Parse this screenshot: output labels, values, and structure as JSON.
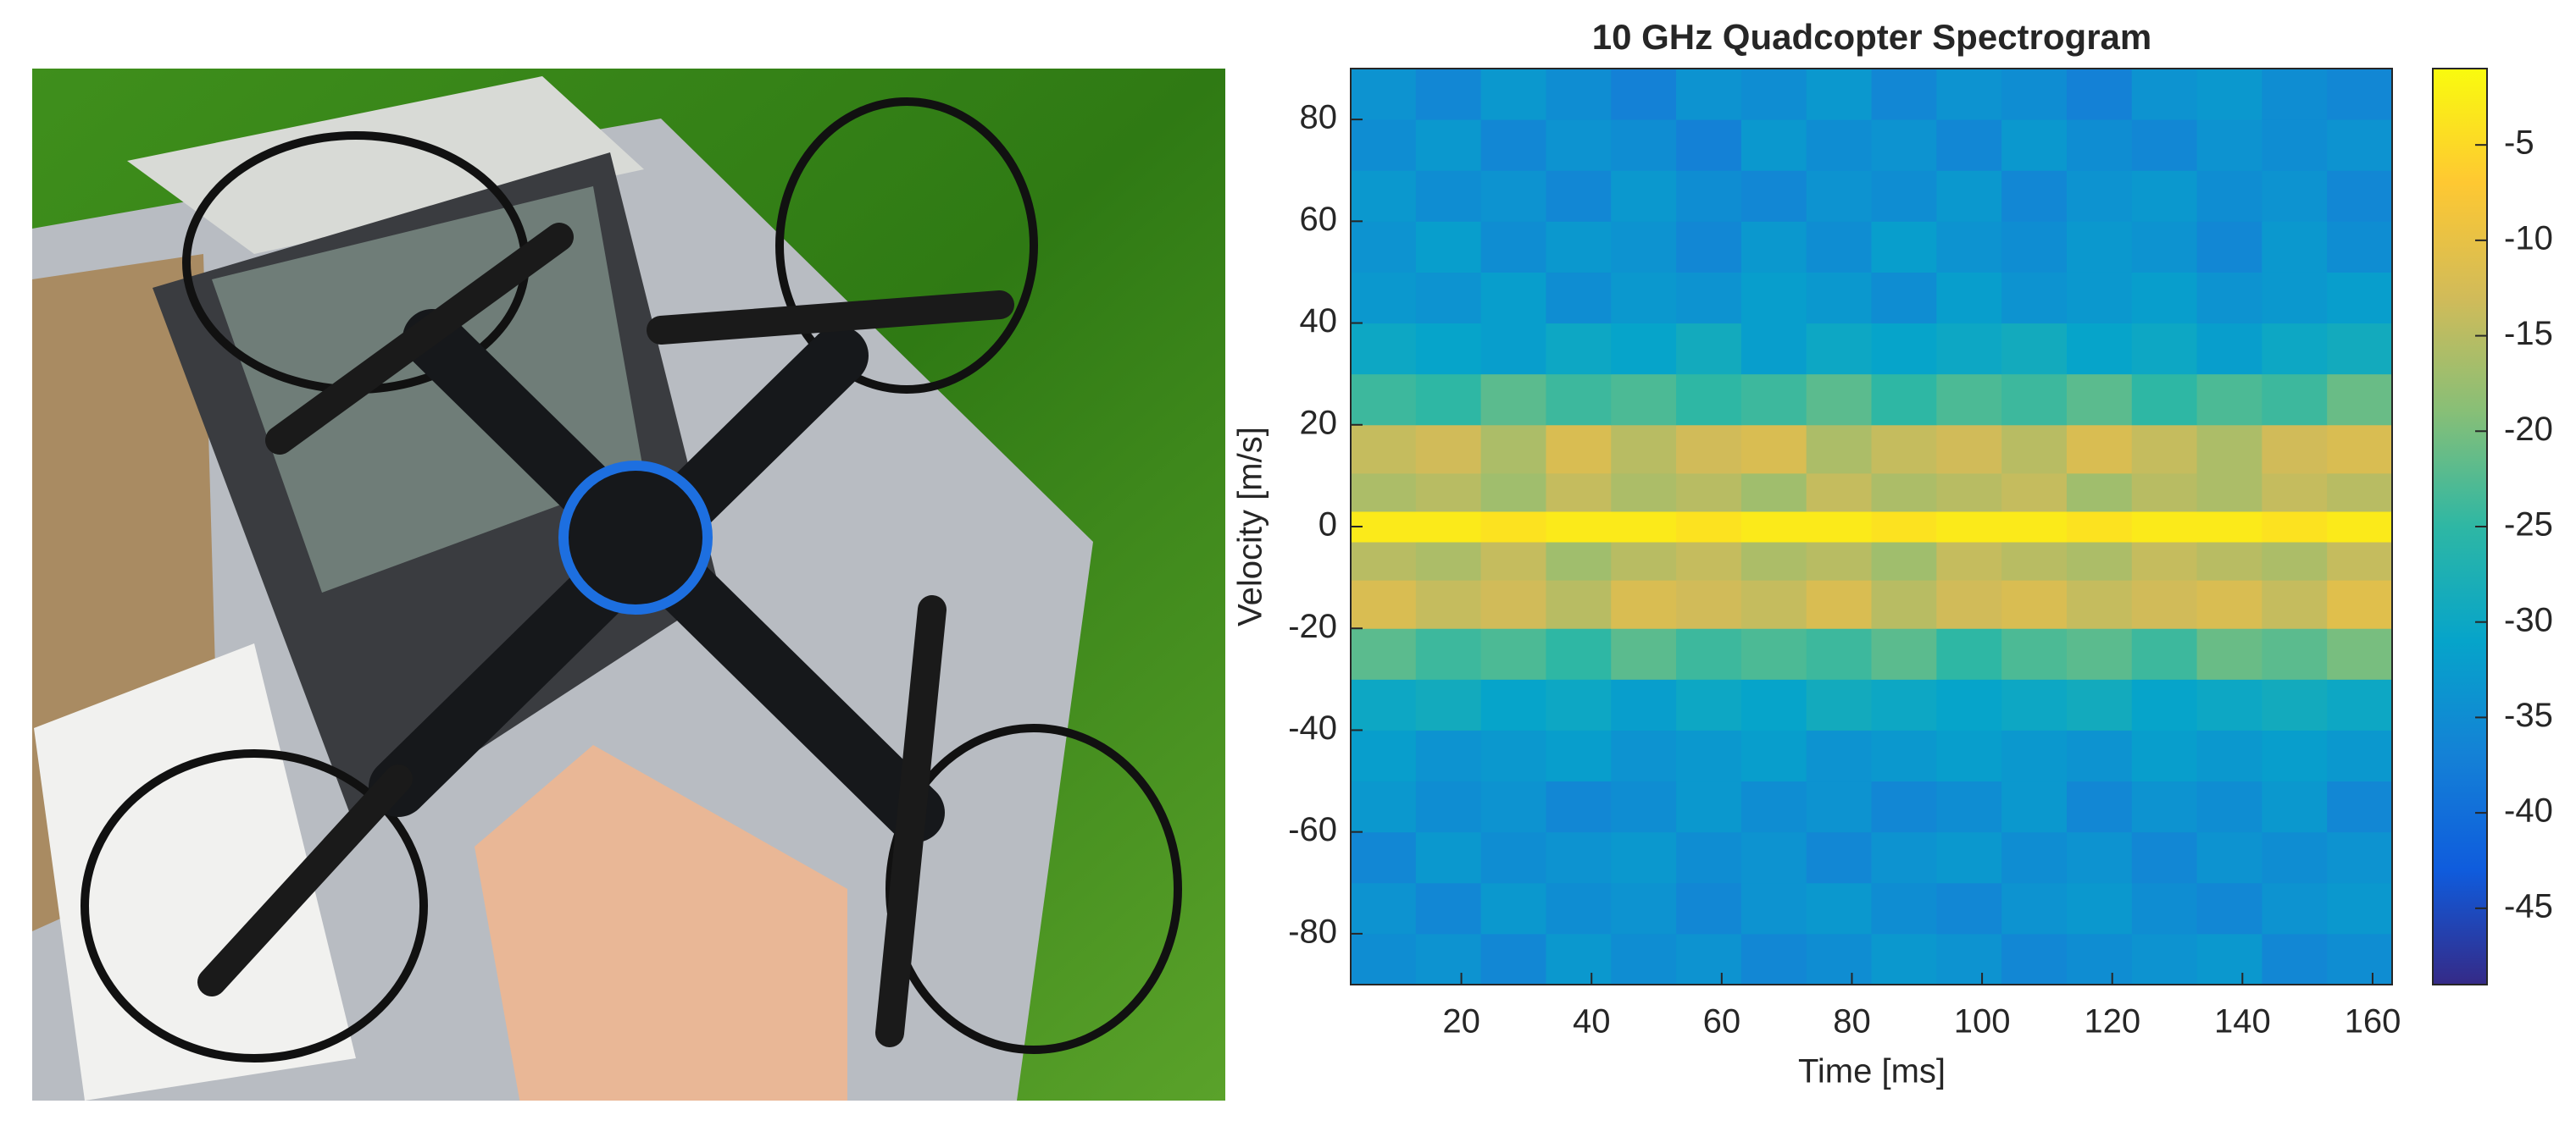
{
  "chart_data": {
    "type": "heatmap",
    "title": "10 GHz Quadcopter Spectrogram",
    "x_label": "Time [ms]",
    "y_label": "Velocity [m/s]",
    "x": [
      8,
      18,
      28,
      38,
      48,
      58,
      68,
      78,
      88,
      98,
      108,
      118,
      128,
      138,
      148,
      158
    ],
    "y": [
      -85,
      -75,
      -65,
      -55,
      -45,
      -35,
      -25,
      -15,
      -6,
      0,
      6,
      15,
      25,
      35,
      45,
      55,
      65,
      75,
      85
    ],
    "z": [
      [
        -35,
        -34,
        -36,
        -33,
        -35,
        -34,
        -36,
        -35,
        -33,
        -34,
        -36,
        -35,
        -34,
        -33,
        -36,
        -35
      ],
      [
        -34,
        -36,
        -33,
        -35,
        -34,
        -36,
        -34,
        -33,
        -35,
        -36,
        -34,
        -33,
        -35,
        -36,
        -34,
        -33
      ],
      [
        -36,
        -33,
        -35,
        -34,
        -33,
        -35,
        -34,
        -36,
        -34,
        -33,
        -35,
        -34,
        -36,
        -34,
        -35,
        -34
      ],
      [
        -33,
        -35,
        -34,
        -36,
        -35,
        -33,
        -35,
        -34,
        -36,
        -35,
        -33,
        -36,
        -34,
        -35,
        -33,
        -36
      ],
      [
        -32,
        -34,
        -33,
        -32,
        -34,
        -33,
        -32,
        -34,
        -33,
        -32,
        -33,
        -34,
        -32,
        -33,
        -32,
        -33
      ],
      [
        -30,
        -29,
        -31,
        -30,
        -32,
        -30,
        -31,
        -29,
        -30,
        -31,
        -30,
        -29,
        -31,
        -30,
        -29,
        -30
      ],
      [
        -22,
        -24,
        -23,
        -25,
        -22,
        -24,
        -23,
        -24,
        -22,
        -25,
        -23,
        -22,
        -24,
        -21,
        -22,
        -20
      ],
      [
        -12,
        -14,
        -13,
        -15,
        -12,
        -13,
        -14,
        -12,
        -15,
        -13,
        -12,
        -14,
        -13,
        -12,
        -14,
        -11
      ],
      [
        -15,
        -16,
        -14,
        -17,
        -15,
        -14,
        -16,
        -15,
        -17,
        -14,
        -15,
        -16,
        -14,
        -15,
        -16,
        -14
      ],
      [
        -3,
        -3,
        -4,
        -3,
        -3,
        -4,
        -3,
        -3,
        -4,
        -3,
        -3,
        -4,
        -3,
        -3,
        -4,
        -3
      ],
      [
        -16,
        -15,
        -17,
        -14,
        -16,
        -15,
        -17,
        -14,
        -16,
        -15,
        -14,
        -17,
        -15,
        -16,
        -14,
        -15
      ],
      [
        -14,
        -13,
        -16,
        -12,
        -15,
        -13,
        -12,
        -16,
        -14,
        -13,
        -15,
        -12,
        -14,
        -16,
        -13,
        -12
      ],
      [
        -24,
        -25,
        -22,
        -24,
        -23,
        -25,
        -24,
        -22,
        -25,
        -23,
        -24,
        -22,
        -25,
        -23,
        -24,
        -21
      ],
      [
        -30,
        -31,
        -32,
        -30,
        -31,
        -29,
        -32,
        -30,
        -31,
        -30,
        -29,
        -31,
        -30,
        -32,
        -30,
        -29
      ],
      [
        -33,
        -34,
        -32,
        -35,
        -33,
        -34,
        -32,
        -33,
        -35,
        -32,
        -34,
        -33,
        -32,
        -34,
        -33,
        -32
      ],
      [
        -34,
        -32,
        -35,
        -33,
        -34,
        -36,
        -33,
        -35,
        -32,
        -34,
        -35,
        -33,
        -34,
        -36,
        -33,
        -35
      ],
      [
        -33,
        -35,
        -34,
        -36,
        -33,
        -35,
        -36,
        -34,
        -35,
        -33,
        -36,
        -34,
        -33,
        -35,
        -34,
        -36
      ],
      [
        -35,
        -33,
        -36,
        -34,
        -35,
        -37,
        -33,
        -35,
        -34,
        -36,
        -33,
        -35,
        -36,
        -34,
        -35,
        -34
      ],
      [
        -34,
        -36,
        -33,
        -35,
        -37,
        -34,
        -35,
        -33,
        -36,
        -34,
        -35,
        -37,
        -34,
        -33,
        -35,
        -36
      ]
    ],
    "xlim": [
      3,
      163
    ],
    "ylim": [
      -90,
      90
    ],
    "xticks": [
      20,
      40,
      60,
      80,
      100,
      120,
      140,
      160
    ],
    "yticks": [
      -80,
      -60,
      -40,
      -20,
      0,
      20,
      40,
      60,
      80
    ],
    "colormap": "parula",
    "clim": [
      -49,
      -1
    ],
    "cticks": [
      -45,
      -40,
      -35,
      -30,
      -25,
      -20,
      -15,
      -10,
      -5
    ]
  }
}
